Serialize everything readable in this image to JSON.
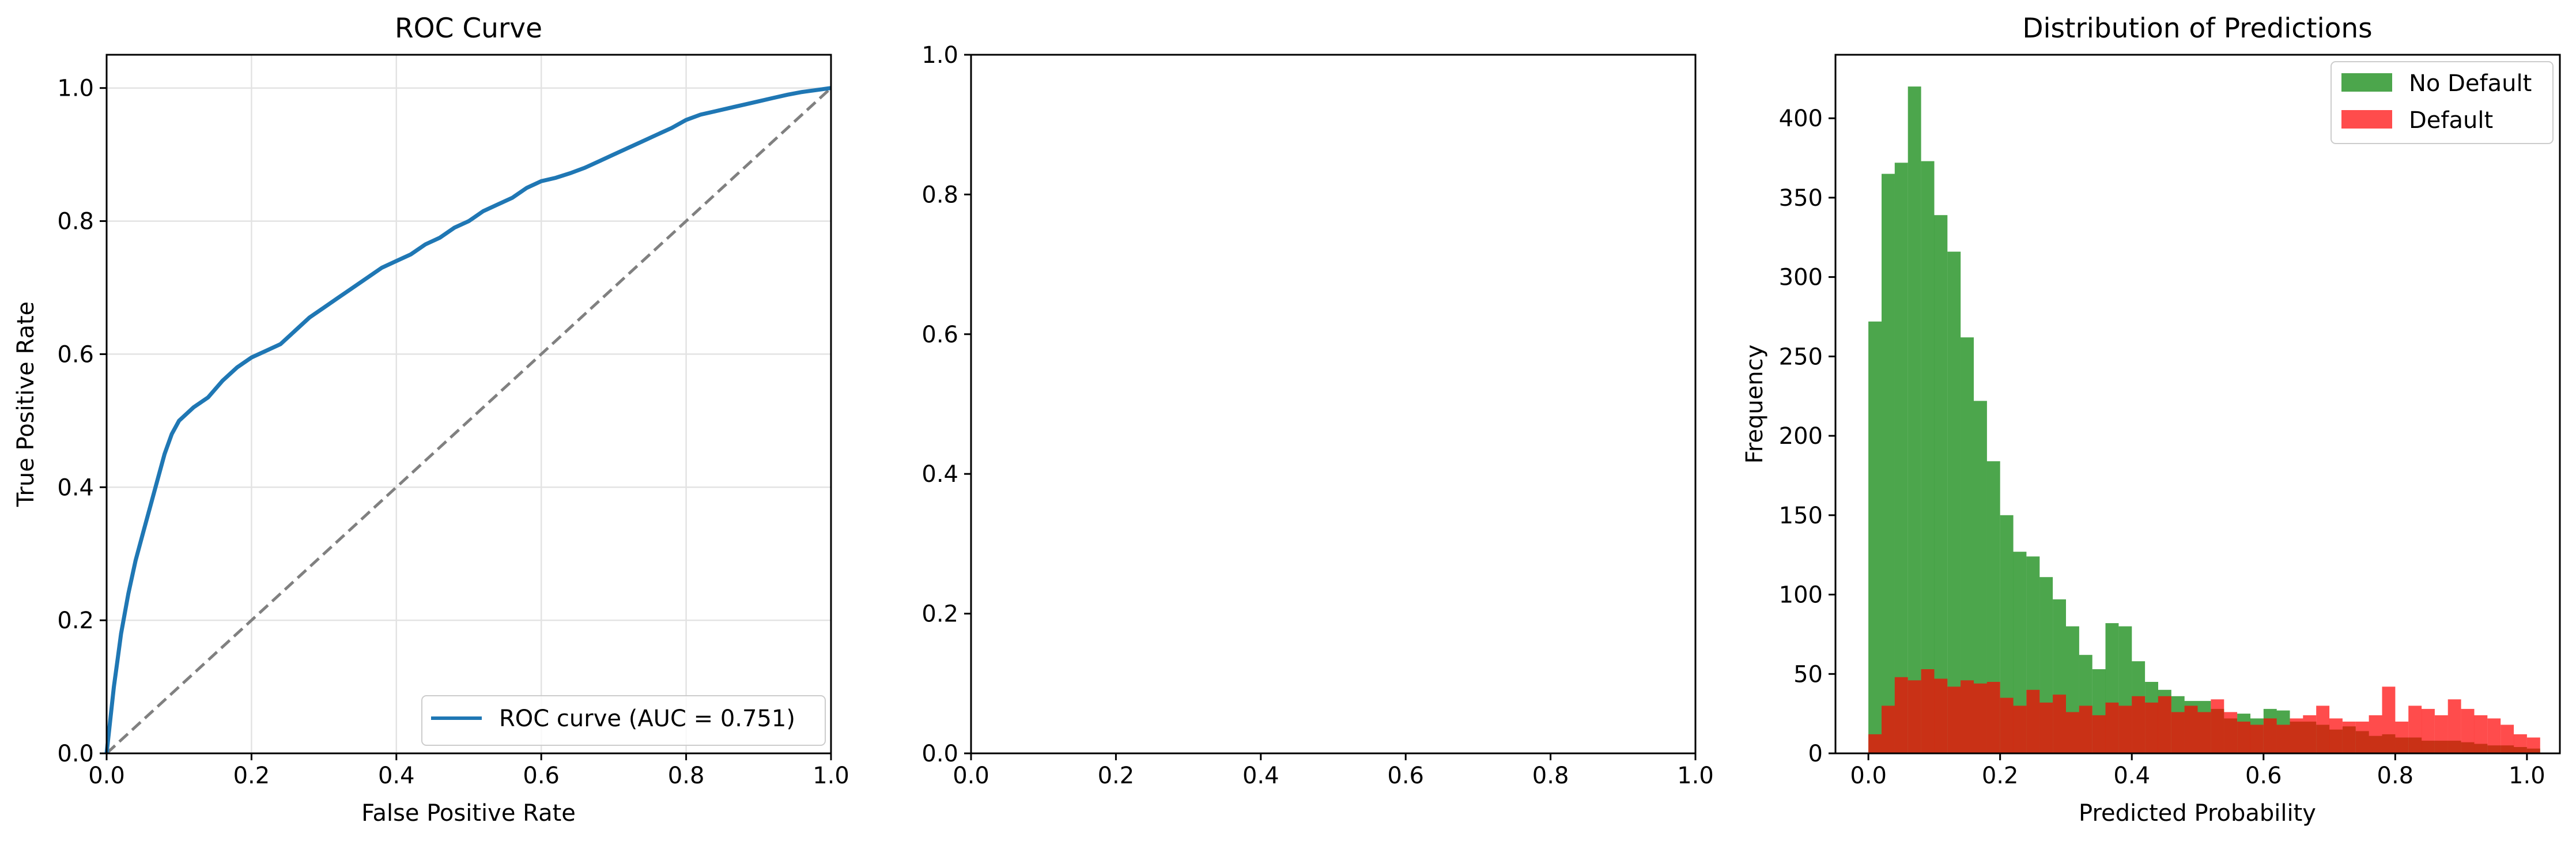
{
  "chart_data": [
    {
      "type": "line",
      "title": "ROC Curve",
      "xlabel": "False Positive Rate",
      "ylabel": "True Positive Rate",
      "xlim": [
        0.0,
        1.0
      ],
      "ylim": [
        0.0,
        1.05
      ],
      "xticks": [
        "0.0",
        "0.2",
        "0.4",
        "0.6",
        "0.8",
        "1.0"
      ],
      "yticks": [
        "0.0",
        "0.2",
        "0.4",
        "0.6",
        "0.8",
        "1.0"
      ],
      "grid": true,
      "legend_position": "lower-right",
      "series": [
        {
          "name": "ROC curve (AUC = 0.751)",
          "color": "#1f77b4",
          "style": "solid",
          "x": [
            0.0,
            0.005,
            0.01,
            0.015,
            0.02,
            0.025,
            0.03,
            0.04,
            0.05,
            0.06,
            0.07,
            0.08,
            0.09,
            0.1,
            0.11,
            0.12,
            0.14,
            0.16,
            0.18,
            0.2,
            0.22,
            0.24,
            0.26,
            0.28,
            0.3,
            0.32,
            0.34,
            0.36,
            0.38,
            0.4,
            0.42,
            0.44,
            0.46,
            0.48,
            0.5,
            0.52,
            0.54,
            0.56,
            0.58,
            0.6,
            0.62,
            0.64,
            0.66,
            0.68,
            0.7,
            0.72,
            0.74,
            0.76,
            0.78,
            0.8,
            0.82,
            0.84,
            0.86,
            0.88,
            0.9,
            0.92,
            0.94,
            0.96,
            0.98,
            1.0
          ],
          "y": [
            0.0,
            0.05,
            0.1,
            0.14,
            0.18,
            0.21,
            0.24,
            0.29,
            0.33,
            0.37,
            0.41,
            0.45,
            0.48,
            0.5,
            0.51,
            0.52,
            0.535,
            0.56,
            0.58,
            0.595,
            0.605,
            0.615,
            0.635,
            0.655,
            0.67,
            0.685,
            0.7,
            0.715,
            0.73,
            0.74,
            0.75,
            0.765,
            0.775,
            0.79,
            0.8,
            0.815,
            0.825,
            0.835,
            0.85,
            0.86,
            0.865,
            0.872,
            0.88,
            0.89,
            0.9,
            0.91,
            0.92,
            0.93,
            0.94,
            0.952,
            0.96,
            0.965,
            0.97,
            0.975,
            0.98,
            0.985,
            0.99,
            0.994,
            0.997,
            1.0
          ]
        },
        {
          "name": "",
          "color": "#808080",
          "style": "dashed",
          "x": [
            0.0,
            1.0
          ],
          "y": [
            0.0,
            1.0
          ]
        }
      ]
    },
    {
      "type": "line",
      "title": "",
      "xlabel": "",
      "ylabel": "",
      "xlim": [
        0.0,
        1.0
      ],
      "ylim": [
        0.0,
        1.0
      ],
      "xticks": [
        "0.0",
        "0.2",
        "0.4",
        "0.6",
        "0.8",
        "1.0"
      ],
      "yticks": [
        "0.0",
        "0.2",
        "0.4",
        "0.6",
        "0.8",
        "1.0"
      ],
      "grid": false,
      "series": []
    },
    {
      "type": "bar",
      "title": "Distribution of Predictions",
      "xlabel": "Predicted Probability",
      "ylabel": "Frequency",
      "xlim": [
        -0.05,
        1.05
      ],
      "ylim": [
        0,
        440
      ],
      "xticks": [
        "0.0",
        "0.2",
        "0.4",
        "0.6",
        "0.8",
        "1.0"
      ],
      "yticks": [
        "0",
        "50",
        "100",
        "150",
        "200",
        "250",
        "300",
        "350",
        "400"
      ],
      "grid": false,
      "legend_position": "top-right",
      "bin_width": 0.02,
      "bin_start": 0.0,
      "series": [
        {
          "name": "No Default",
          "color": "#008000",
          "opacity": 0.7,
          "values": [
            272,
            365,
            372,
            420,
            373,
            339,
            316,
            262,
            222,
            184,
            150,
            127,
            124,
            111,
            97,
            80,
            62,
            53,
            82,
            80,
            58,
            45,
            40,
            36,
            33,
            33,
            28,
            22,
            25,
            22,
            28,
            27,
            20,
            20,
            18,
            15,
            17,
            14,
            11,
            12,
            10,
            10,
            8,
            8,
            8,
            7,
            6,
            5,
            5,
            4,
            3
          ]
        },
        {
          "name": "Default",
          "color": "#ff0000",
          "opacity": 0.7,
          "values": [
            12,
            30,
            48,
            46,
            53,
            47,
            42,
            46,
            44,
            45,
            35,
            30,
            40,
            32,
            37,
            26,
            30,
            24,
            32,
            30,
            36,
            32,
            36,
            26,
            30,
            26,
            34,
            26,
            20,
            18,
            22,
            18,
            22,
            24,
            30,
            22,
            20,
            20,
            24,
            42,
            20,
            30,
            28,
            24,
            34,
            28,
            24,
            22,
            18,
            12,
            10
          ]
        }
      ]
    }
  ]
}
